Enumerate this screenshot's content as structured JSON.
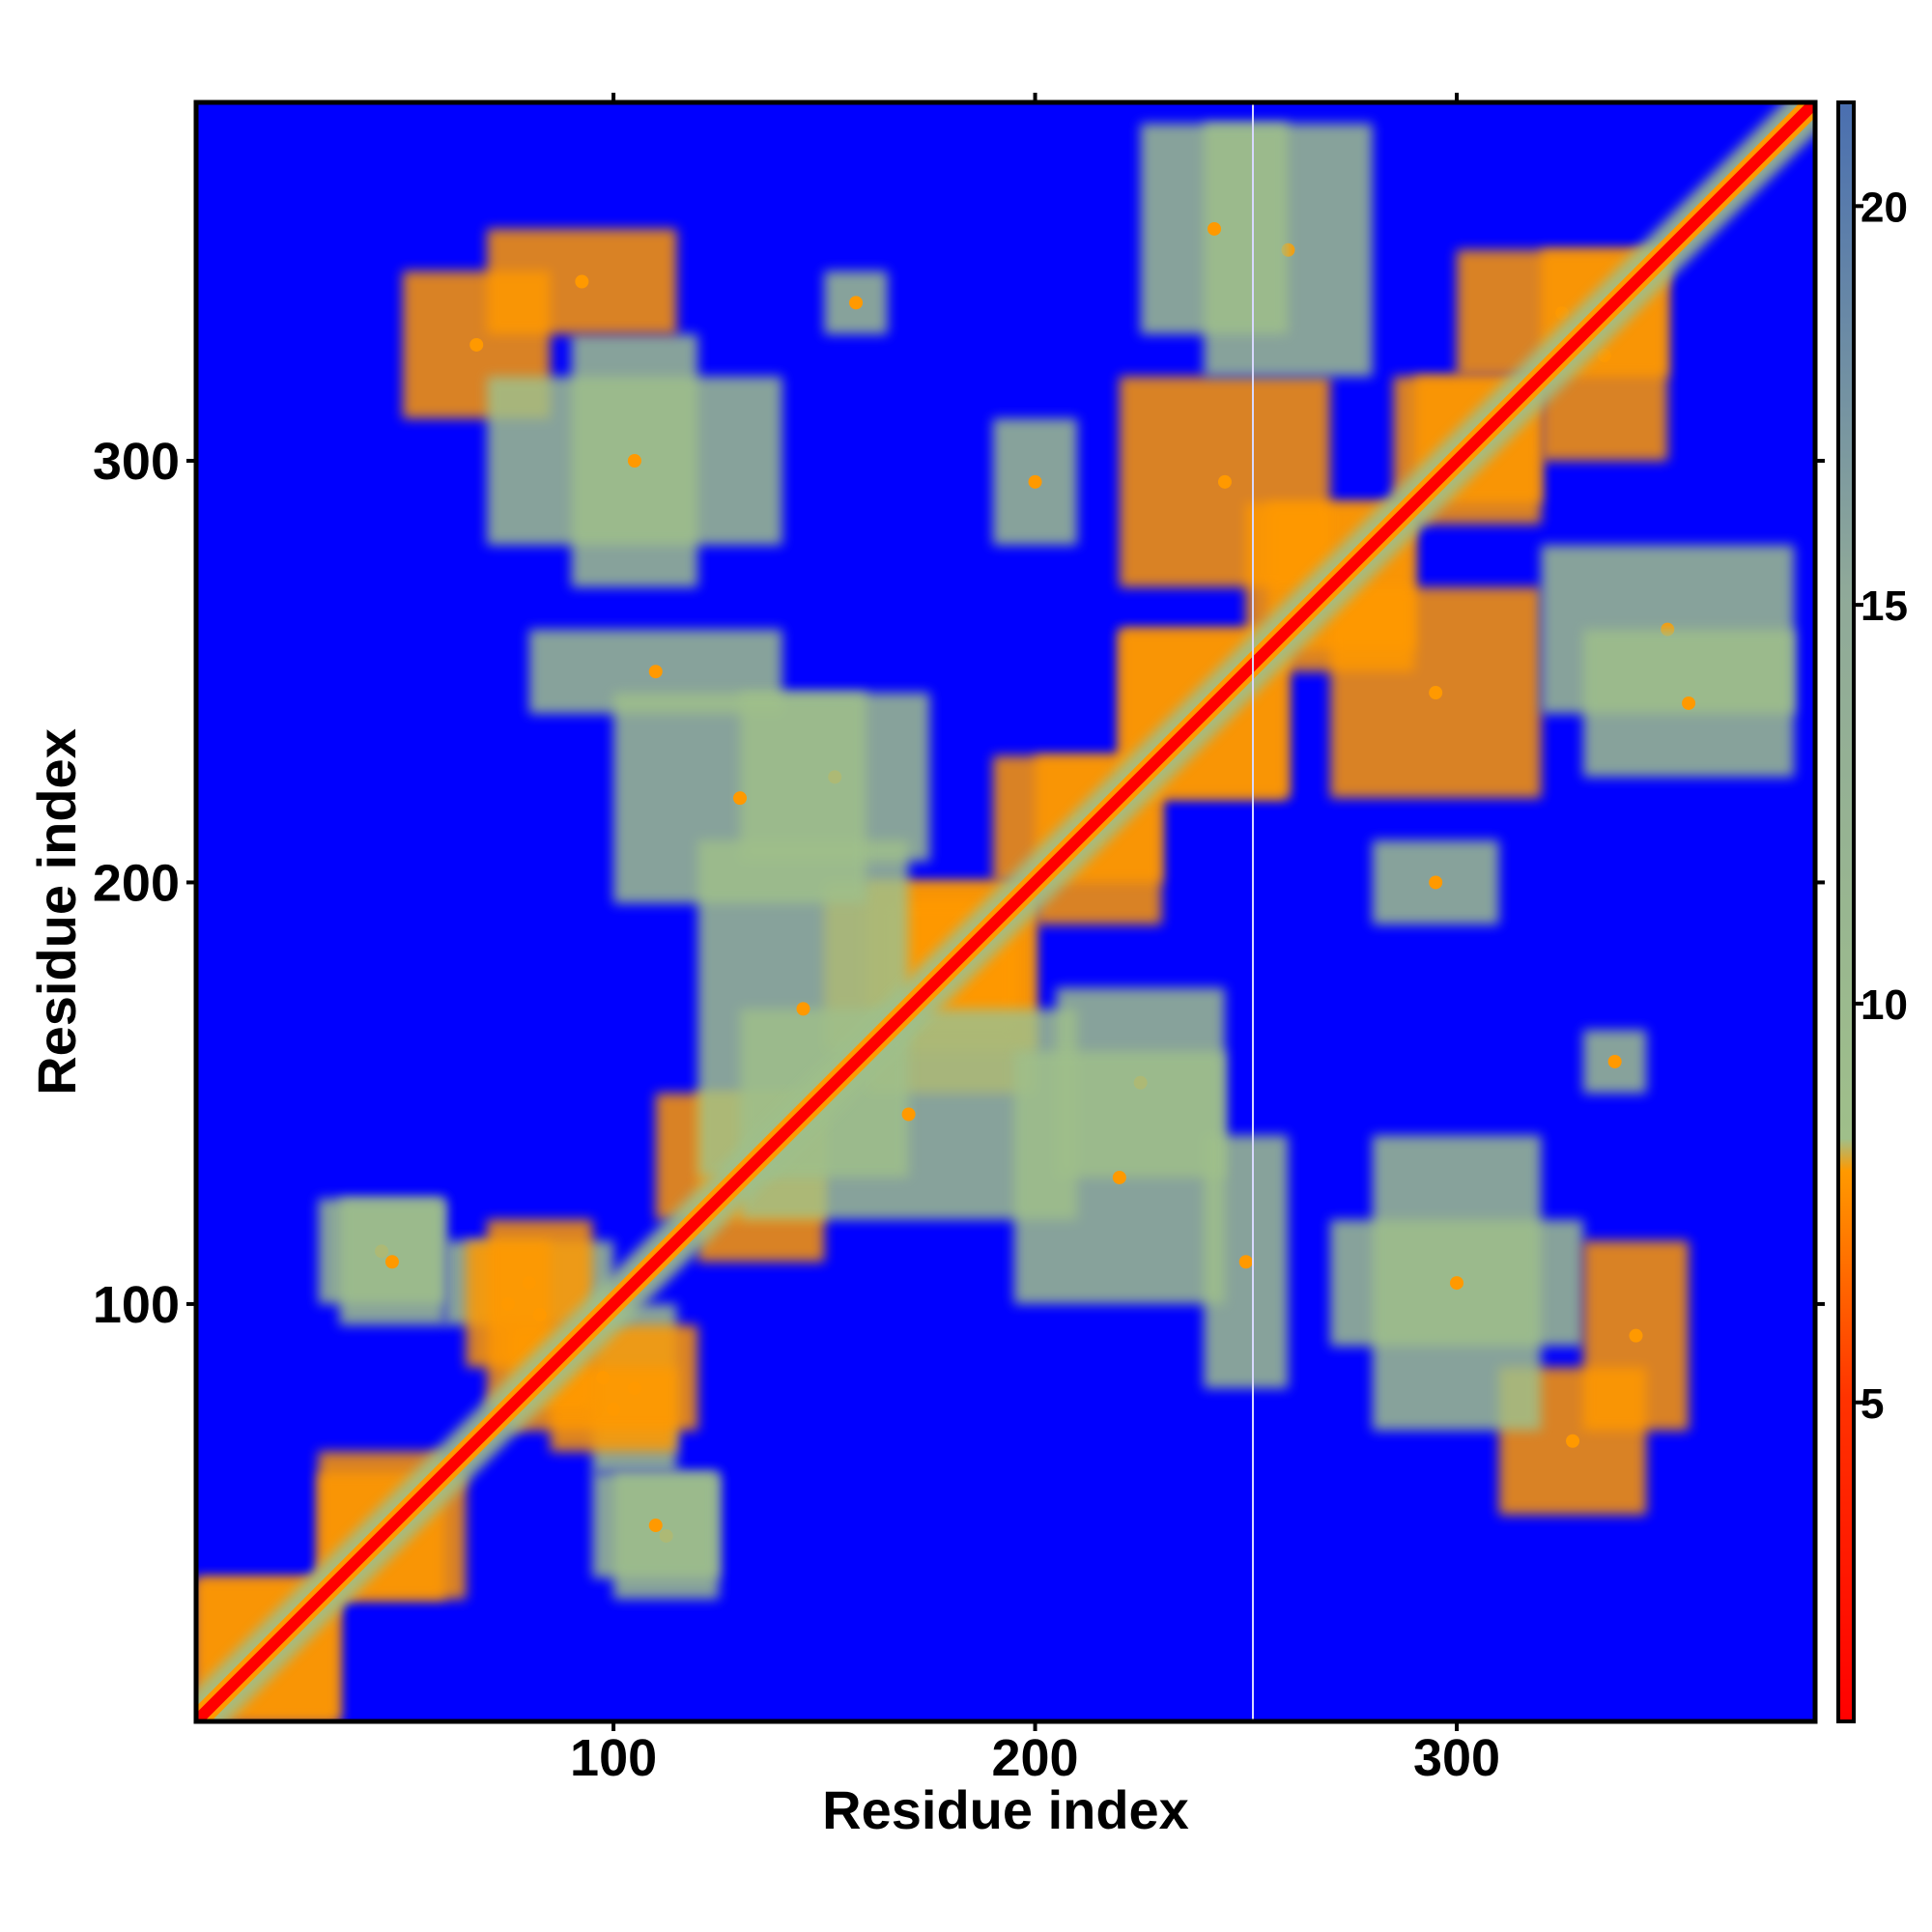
{
  "chart_data": {
    "type": "heatmap",
    "title": "",
    "xlabel": "Residue index",
    "ylabel": "Residue index",
    "xlim": [
      1,
      385
    ],
    "ylim": [
      1,
      385
    ],
    "x_ticks": [
      100,
      200,
      300
    ],
    "y_ticks": [
      100,
      200,
      300
    ],
    "colorbar": {
      "range": [
        1,
        21.3
      ],
      "ticks": [
        5,
        10,
        15,
        20
      ],
      "colors": {
        "close": "#ff0000",
        "mid": "#ff9900",
        "far": "#9fbf8a",
        "distant": "#5a7fa8",
        "background": "#0000ff"
      }
    },
    "diagonal": {
      "from": 1,
      "to": 385
    },
    "contact_clusters": [
      {
        "x": [
          1,
          35
        ],
        "y": [
          1,
          35
        ],
        "value": 6
      },
      {
        "x": [
          30,
          60
        ],
        "y": [
          30,
          65
        ],
        "value": 7
      },
      {
        "x": [
          60,
          100
        ],
        "y": [
          95,
          115
        ],
        "value": 9
      },
      {
        "x": [
          65,
          85
        ],
        "y": [
          85,
          115
        ],
        "value": 6
      },
      {
        "x": [
          75,
          120
        ],
        "y": [
          70,
          95
        ],
        "value": 8
      },
      {
        "x": [
          100,
          125
        ],
        "y": [
          30,
          60
        ],
        "value": 9
      },
      {
        "x": [
          35,
          60
        ],
        "y": [
          95,
          125
        ],
        "value": 10
      },
      {
        "x": [
          120,
          150
        ],
        "y": [
          110,
          150
        ],
        "value": 7
      },
      {
        "x": [
          150,
          200
        ],
        "y": [
          160,
          200
        ],
        "value": 6
      },
      {
        "x": [
          165,
          195
        ],
        "y": [
          165,
          195
        ],
        "value": 5
      },
      {
        "x": [
          200,
          230
        ],
        "y": [
          190,
          230
        ],
        "value": 6
      },
      {
        "x": [
          220,
          260
        ],
        "y": [
          220,
          260
        ],
        "value": 6
      },
      {
        "x": [
          255,
          290
        ],
        "y": [
          250,
          290
        ],
        "value": 7
      },
      {
        "x": [
          290,
          320
        ],
        "y": [
          285,
          320
        ],
        "value": 6
      },
      {
        "x": [
          320,
          350
        ],
        "y": [
          300,
          350
        ],
        "value": 7
      },
      {
        "x": [
          50,
          85
        ],
        "y": [
          310,
          345
        ],
        "value": 8
      },
      {
        "x": [
          90,
          120
        ],
        "y": [
          270,
          330
        ],
        "value": 10
      },
      {
        "x": [
          240,
          260
        ],
        "y": [
          80,
          140
        ],
        "value": 11
      },
      {
        "x": [
          280,
          320
        ],
        "y": [
          70,
          140
        ],
        "value": 9
      },
      {
        "x": [
          330,
          355
        ],
        "y": [
          70,
          115
        ],
        "value": 7
      },
      {
        "x": [
          270,
          320
        ],
        "y": [
          220,
          270
        ],
        "value": 8
      },
      {
        "x": [
          320,
          380
        ],
        "y": [
          240,
          280
        ],
        "value": 9
      },
      {
        "x": [
          225,
          260
        ],
        "y": [
          330,
          380
        ],
        "value": 10
      },
      {
        "x": [
          130,
          210
        ],
        "y": [
          120,
          170
        ],
        "value": 10
      },
      {
        "x": [
          205,
          245
        ],
        "y": [
          130,
          175
        ],
        "value": 11
      },
      {
        "x": [
          100,
          160
        ],
        "y": [
          195,
          245
        ],
        "value": 10
      },
      {
        "x": [
          280,
          310
        ],
        "y": [
          190,
          210
        ],
        "value": 11
      },
      {
        "x": [
          330,
          345
        ],
        "y": [
          150,
          165
        ],
        "value": 11
      }
    ]
  }
}
